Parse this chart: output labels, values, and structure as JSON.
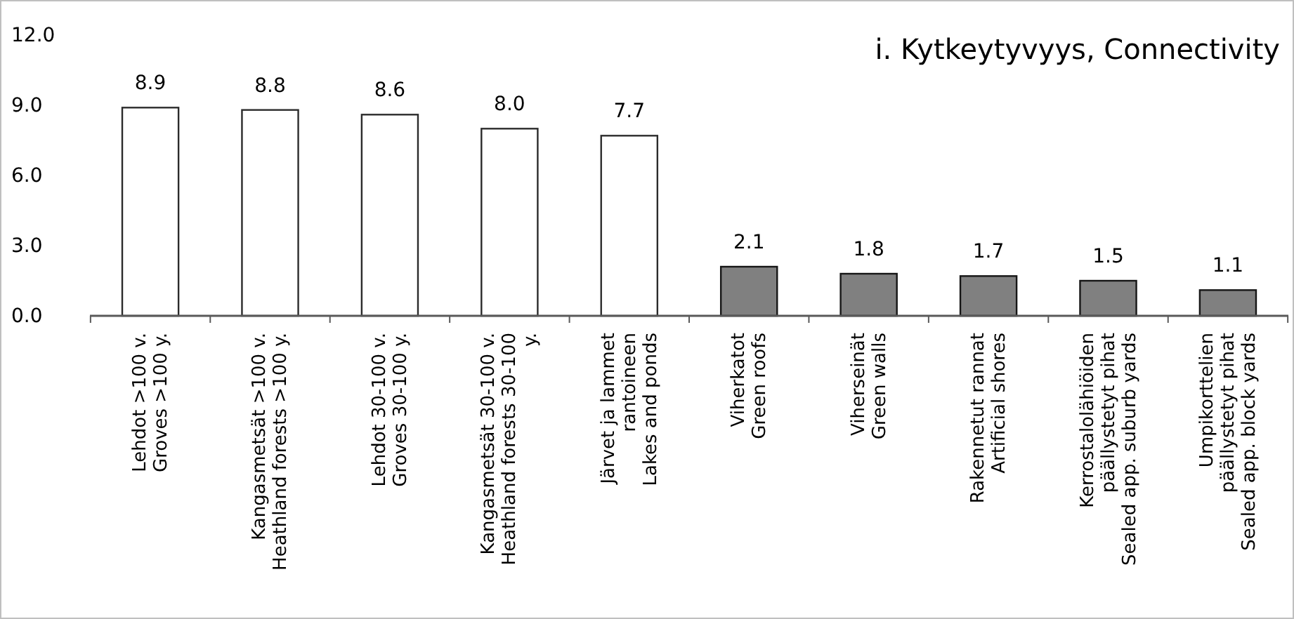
{
  "chart_data": {
    "type": "bar",
    "title": "i. Kytkeytyvyys, Connectivity",
    "categories": [
      "Lehdot >100 v.\nGroves >100 y.",
      "Kangasmetsät >100 v.\nHeathland forests >100 y.",
      "Lehdot 30-100 v.\nGroves 30-100 y.",
      "Kangasmetsät 30-100 v.\nHeathland forests 30-100 y.",
      "Järvet ja lammet rantoineen\nLakes and ponds",
      "Viherkatot\nGreen roofs",
      "Viherseinät\nGreen walls",
      "Rakennetut rannat\nArtificial shores",
      "Kerrostalolähiöiden päällystetyt pihat\nSealed app. suburb yards",
      "Umpikorttelien päällystetyt pihat\nSealed app. block yards"
    ],
    "values": [
      8.9,
      8.8,
      8.6,
      8.0,
      7.7,
      2.1,
      1.8,
      1.7,
      1.5,
      1.1
    ],
    "colors": [
      "#ffffff",
      "#ffffff",
      "#ffffff",
      "#ffffff",
      "#ffffff",
      "#808080",
      "#808080",
      "#808080",
      "#808080",
      "#808080"
    ],
    "value_labels": [
      "8.9",
      "8.8",
      "8.6",
      "8.0",
      "7.7",
      "2.1",
      "1.8",
      "1.7",
      "1.5",
      "1.1"
    ],
    "ylim": [
      0,
      12
    ],
    "yticks": [
      {
        "value": 0,
        "label": "0.0"
      },
      {
        "value": 3,
        "label": "3.0"
      },
      {
        "value": 6,
        "label": "6.0"
      },
      {
        "value": 9,
        "label": "9.0"
      },
      {
        "value": 12,
        "label": "12.0"
      }
    ],
    "grid": false
  }
}
